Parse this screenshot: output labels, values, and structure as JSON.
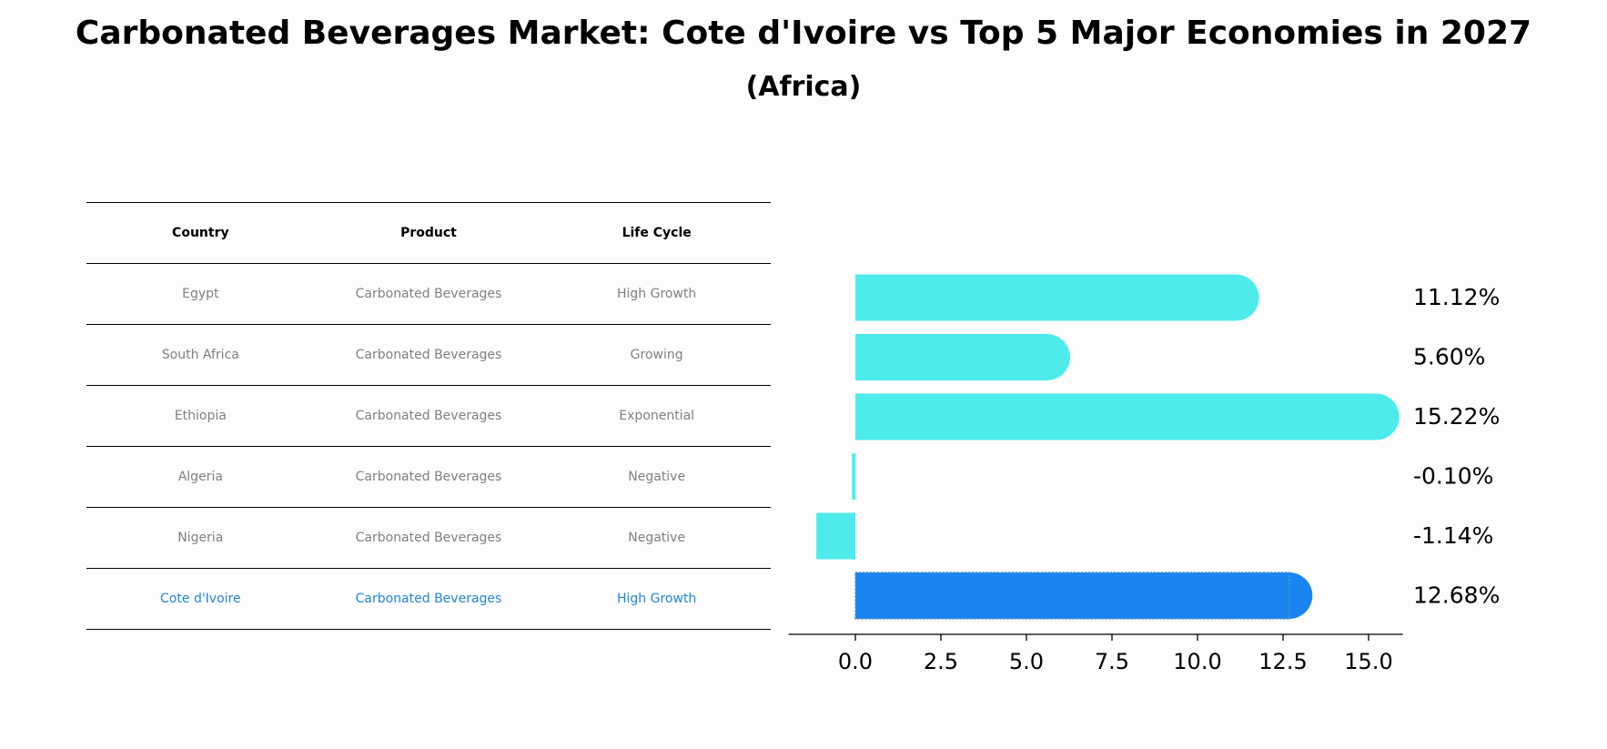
{
  "title": "Carbonated Beverages Market: Cote d'Ivoire vs Top 5 Major Economies in 2027",
  "subtitle": "(Africa)",
  "table": {
    "headers": [
      "Country",
      "Product",
      "Life Cycle"
    ],
    "rows": [
      {
        "country": "Egypt",
        "product": "Carbonated Beverages",
        "life_cycle": "High Growth",
        "highlight": false
      },
      {
        "country": "South Africa",
        "product": "Carbonated Beverages",
        "life_cycle": "Growing",
        "highlight": false
      },
      {
        "country": "Ethiopia",
        "product": "Carbonated Beverages",
        "life_cycle": "Exponential",
        "highlight": false
      },
      {
        "country": "Algeria",
        "product": "Carbonated Beverages",
        "life_cycle": "Negative",
        "highlight": false
      },
      {
        "country": "Nigeria",
        "product": "Carbonated Beverages",
        "life_cycle": "Negative",
        "highlight": false
      },
      {
        "country": "Cote d'Ivoire",
        "product": "Carbonated Beverages",
        "life_cycle": "High Growth",
        "highlight": true
      }
    ]
  },
  "chart_data": {
    "type": "bar",
    "orientation": "horizontal",
    "categories": [
      "Egypt",
      "South Africa",
      "Ethiopia",
      "Algeria",
      "Nigeria",
      "Cote d'Ivoire"
    ],
    "values": [
      11.12,
      5.6,
      15.22,
      -0.1,
      -1.14,
      12.68
    ],
    "value_labels": [
      "11.12%",
      "5.60%",
      "15.22%",
      "-0.10%",
      "-1.14%",
      "12.68%"
    ],
    "xlim": [
      -1.95,
      16.0
    ],
    "xticks": [
      0.0,
      2.5,
      5.0,
      7.5,
      10.0,
      12.5,
      15.0
    ],
    "xtick_labels": [
      "0.0",
      "2.5",
      "5.0",
      "7.5",
      "10.0",
      "12.5",
      "15.0"
    ],
    "grid": false,
    "colors": {
      "default": "#4deceb",
      "highlight": "#1a85f0",
      "highlight_edge": "#5a8fc8"
    }
  }
}
